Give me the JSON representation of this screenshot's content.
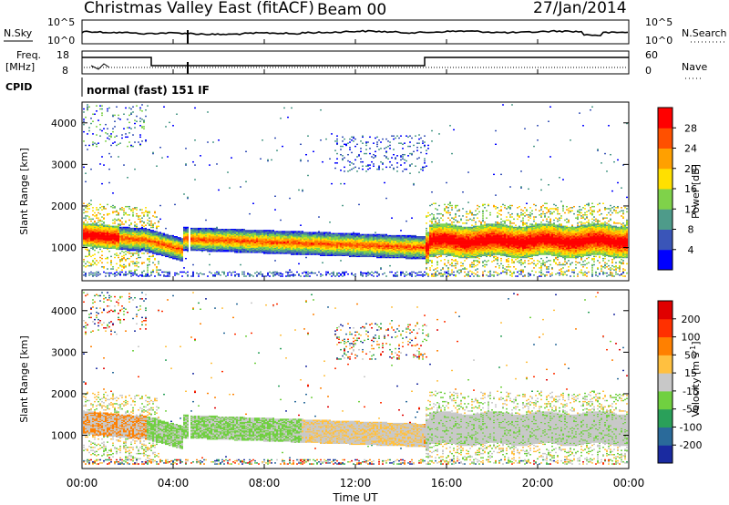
{
  "header": {
    "title": "Christmas Valley East (fitACF)",
    "beam": "Beam 00",
    "date": "27/Jan/2014"
  },
  "top_panels": {
    "nsky_label": "N.Sky",
    "nsearch_label": "N.Search",
    "nsky_ticks": [
      "10^5",
      "10^0"
    ],
    "nsearch_ticks": [
      "10^5",
      "10^0"
    ],
    "freq_label_1": "Freq.",
    "freq_label_2": "[MHz]",
    "freq_ticks": [
      "18",
      "8"
    ],
    "nave_label": "Nave",
    "nave_ticks": [
      "60",
      "0"
    ],
    "cpid_label": "CPID",
    "cpid_text": "normal (fast) 151 IF"
  },
  "chart_data": [
    {
      "type": "heatmap",
      "name": "power",
      "ylabel": "Slant Range [km]",
      "yticks": [
        "1000",
        "2000",
        "3000",
        "4000"
      ],
      "ylim": [
        200,
        4500
      ],
      "colorbar_label": "Power [dB]",
      "colorbar_ticks": [
        "4",
        "8",
        "12",
        "16",
        "20",
        "24",
        "28"
      ],
      "colors": [
        "#0000ff",
        "#3a55b8",
        "#4e9b8a",
        "#7fd24a",
        "#ffe000",
        "#ffa000",
        "#ff5000",
        "#ff0000"
      ]
    },
    {
      "type": "heatmap",
      "name": "velocity",
      "ylabel": "Slant Range [km]",
      "yticks": [
        "1000",
        "2000",
        "3000",
        "4000"
      ],
      "ylim": [
        200,
        4500
      ],
      "colorbar_label": "Velocity [m s",
      "colorbar_ticks": [
        "200",
        "100",
        "50",
        "15",
        "-15",
        "-50",
        "-100",
        "-200"
      ],
      "colors": [
        "#1a2aa0",
        "#2a6a9a",
        "#2aa05a",
        "#70d040",
        "#c8c8c8",
        "#ffc040",
        "#ff8000",
        "#ff3000",
        "#e00000"
      ]
    }
  ],
  "xaxis": {
    "ticks": [
      "00:00",
      "04:00",
      "08:00",
      "12:00",
      "16:00",
      "20:00",
      "00:00"
    ],
    "label": "Time UT"
  }
}
